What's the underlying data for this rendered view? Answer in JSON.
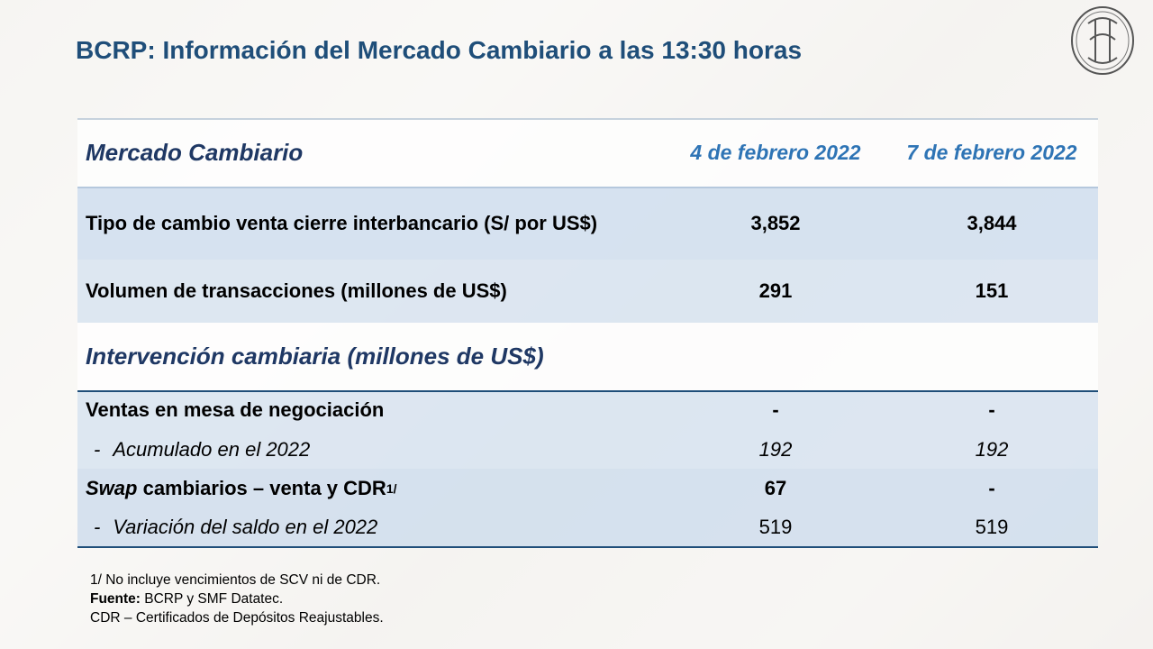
{
  "header": {
    "title": "BCRP: Información del Mercado Cambiario a las 13:30 horas"
  },
  "table": {
    "head": [
      "Mercado Cambiario",
      "4 de febrero 2022",
      "7 de febrero 2022"
    ],
    "rows": [
      [
        "Tipo de cambio venta cierre interbancario (S/ por US$)",
        "3,852",
        "3,844"
      ],
      [
        "Volumen de transacciones (millones de US$)",
        "291",
        "151"
      ]
    ],
    "section": "Intervención cambiaria (millones de US$)",
    "section_rows": [
      {
        "label": "Ventas en mesa de negociación",
        "values": [
          "-",
          "-"
        ]
      },
      {
        "label": "Acumulado en el 2022",
        "bullet": "-",
        "values": [
          "192",
          "192"
        ]
      },
      {
        "label_italic": "Swap",
        "label": " cambiarios – venta y CDR",
        "sup": "1/",
        "values": [
          "67",
          "-"
        ]
      },
      {
        "label": "Variación del saldo en el 2022",
        "bullet": "-",
        "values": [
          "519",
          "519"
        ]
      }
    ]
  },
  "footnotes": {
    "note": "1/ No incluye vencimientos de SCV ni de CDR.",
    "source_label": "Fuente:",
    "source": " BCRP y SMF Datatec.",
    "abbreviation": "CDR – Certificados de Depósitos Reajustables."
  }
}
